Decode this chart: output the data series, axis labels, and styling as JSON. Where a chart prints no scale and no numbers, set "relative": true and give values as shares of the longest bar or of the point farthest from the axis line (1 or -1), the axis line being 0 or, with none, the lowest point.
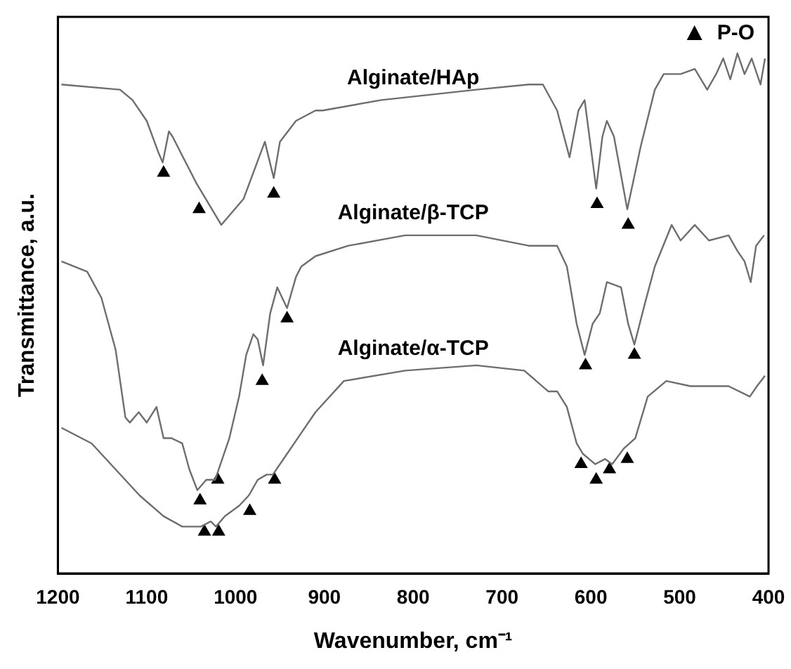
{
  "chart_data": {
    "type": "line",
    "xlabel": "Wavenumber, cm⁻¹",
    "ylabel": "Transmittance, a.u.",
    "relative": true,
    "xlim": [
      1200,
      400
    ],
    "xticks": [
      1200,
      1100,
      1000,
      900,
      800,
      700,
      600,
      500,
      400
    ],
    "grid": false,
    "legend": "top right",
    "marker": "none",
    "line_style": "solid",
    "series": [
      {
        "name": "Alginate/HAp",
        "color": "#6e6e6e",
        "x": [
          1196,
          1130,
          1116,
          1100,
          1087,
          1082,
          1075,
          1071,
          1044,
          1016,
          991,
          967,
          957,
          950,
          932,
          910,
          902,
          836,
          729,
          670,
          654,
          638,
          624,
          614,
          607,
          594,
          587,
          582,
          574,
          559,
          544,
          528,
          518,
          499,
          483,
          469,
          459,
          451,
          443,
          435,
          427,
          419,
          409,
          404
        ],
        "values": [
          0.94,
          0.93,
          0.91,
          0.87,
          0.81,
          0.79,
          0.85,
          0.84,
          0.75,
          0.67,
          0.72,
          0.83,
          0.76,
          0.83,
          0.87,
          0.89,
          0.89,
          0.91,
          0.93,
          0.94,
          0.94,
          0.89,
          0.8,
          0.89,
          0.91,
          0.74,
          0.84,
          0.87,
          0.84,
          0.7,
          0.82,
          0.93,
          0.96,
          0.96,
          0.97,
          0.93,
          0.96,
          0.99,
          0.95,
          1.0,
          0.96,
          0.99,
          0.94,
          0.99
        ]
      },
      {
        "name": "Alginate/β-TCP",
        "color": "#6e6e6e",
        "x": [
          1196,
          1167,
          1151,
          1135,
          1124,
          1119,
          1109,
          1100,
          1089,
          1081,
          1072,
          1060,
          1052,
          1043,
          1033,
          1027,
          1023,
          1007,
          996,
          988,
          980,
          975,
          969,
          961,
          953,
          942,
          932,
          926,
          910,
          873,
          809,
          729,
          670,
          638,
          627,
          616,
          607,
          598,
          590,
          582,
          566,
          558,
          551,
          539,
          528,
          509,
          499,
          483,
          467,
          445,
          435,
          427,
          420,
          414,
          405
        ],
        "values": [
          0.6,
          0.58,
          0.53,
          0.43,
          0.3,
          0.29,
          0.31,
          0.29,
          0.32,
          0.26,
          0.26,
          0.25,
          0.2,
          0.16,
          0.18,
          0.18,
          0.18,
          0.26,
          0.34,
          0.42,
          0.46,
          0.45,
          0.4,
          0.5,
          0.55,
          0.51,
          0.57,
          0.59,
          0.61,
          0.63,
          0.65,
          0.65,
          0.63,
          0.63,
          0.59,
          0.48,
          0.42,
          0.48,
          0.5,
          0.56,
          0.55,
          0.48,
          0.44,
          0.52,
          0.59,
          0.67,
          0.64,
          0.67,
          0.64,
          0.65,
          0.62,
          0.6,
          0.56,
          0.63,
          0.65
        ]
      },
      {
        "name": "Alginate/α-TCP",
        "color": "#6e6e6e",
        "x": [
          1196,
          1162,
          1135,
          1108,
          1081,
          1060,
          1039,
          1028,
          1022,
          1012,
          996,
          985,
          975,
          965,
          958,
          942,
          926,
          910,
          878,
          809,
          729,
          675,
          648,
          638,
          627,
          616,
          609,
          595,
          584,
          576,
          563,
          550,
          536,
          515,
          488,
          467,
          445,
          421,
          413,
          404
        ],
        "values": [
          0.28,
          0.25,
          0.2,
          0.15,
          0.11,
          0.09,
          0.09,
          0.1,
          0.09,
          0.11,
          0.13,
          0.15,
          0.18,
          0.19,
          0.19,
          0.23,
          0.27,
          0.31,
          0.37,
          0.39,
          0.4,
          0.39,
          0.35,
          0.35,
          0.32,
          0.25,
          0.23,
          0.21,
          0.22,
          0.21,
          0.24,
          0.26,
          0.34,
          0.37,
          0.36,
          0.36,
          0.36,
          0.34,
          0.36,
          0.38
        ]
      },
      {
        "name": "P-O",
        "type": "scatter",
        "marker": "triangle",
        "color": "#000000",
        "x": [
          1081,
          1041,
          957,
          942,
          970,
          1020,
          1040,
          956,
          984,
          1035,
          1019,
          593,
          558,
          606,
          551,
          611,
          594,
          579,
          559
        ],
        "values": [
          0.77,
          0.7,
          0.73,
          0.49,
          0.37,
          0.18,
          0.14,
          0.18,
          0.12,
          0.08,
          0.08,
          0.71,
          0.67,
          0.4,
          0.42,
          0.21,
          0.18,
          0.2,
          0.22
        ]
      }
    ]
  }
}
